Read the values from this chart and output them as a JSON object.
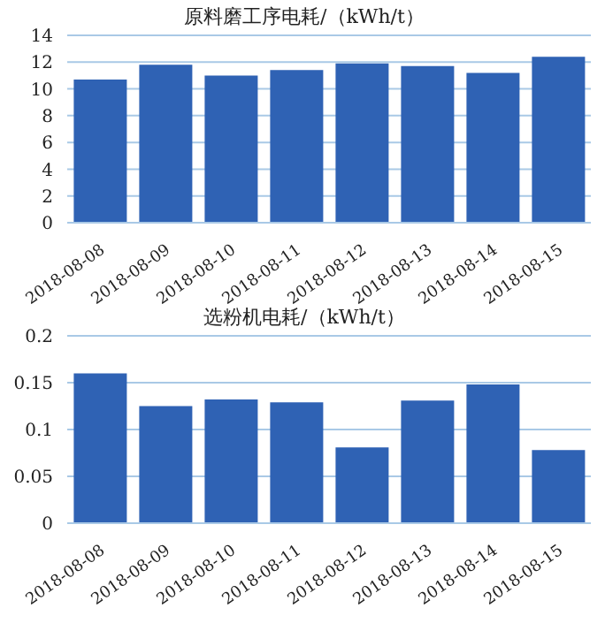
{
  "chart_data": [
    {
      "type": "bar",
      "title": "原料磨工序电耗/（kWh/t）",
      "categories": [
        "2018-08-08",
        "2018-08-09",
        "2018-08-10",
        "2018-08-11",
        "2018-08-12",
        "2018-08-13",
        "2018-08-14",
        "2018-08-15"
      ],
      "values": [
        10.7,
        11.8,
        11.0,
        11.4,
        11.9,
        11.7,
        11.2,
        12.4
      ],
      "color": "#2f62b4",
      "ylim": [
        0,
        14
      ],
      "yticks": [
        0,
        2,
        4,
        6,
        8,
        10,
        12,
        14
      ],
      "grid": "y"
    },
    {
      "type": "bar",
      "title": "选粉机电耗/（kWh/t）",
      "categories": [
        "2018-08-08",
        "2018-08-09",
        "2018-08-10",
        "2018-08-11",
        "2018-08-12",
        "2018-08-13",
        "2018-08-14",
        "2018-08-15"
      ],
      "values": [
        0.16,
        0.125,
        0.132,
        0.129,
        0.081,
        0.131,
        0.148,
        0.078
      ],
      "color": "#2f62b4",
      "ylim": [
        0,
        0.2
      ],
      "yticks": [
        0,
        0.05,
        0.1,
        0.15,
        0.2
      ],
      "grid": "y"
    }
  ]
}
